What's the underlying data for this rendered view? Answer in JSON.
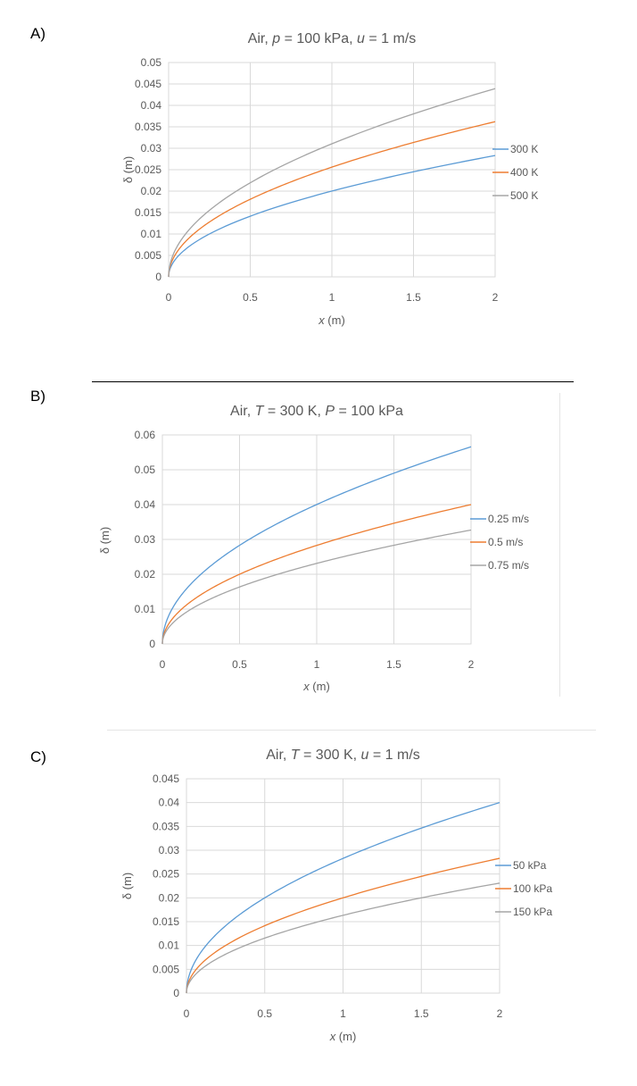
{
  "panels": [
    {
      "label": "A)"
    },
    {
      "label": "B)"
    },
    {
      "label": "C)"
    }
  ],
  "colors": {
    "blue": "#5b9bd5",
    "orange": "#ed7d31",
    "gray": "#a5a5a5",
    "grid": "#d9d9d9"
  },
  "chart_data": [
    {
      "type": "line",
      "title_parts": [
        {
          "t": "Air, ",
          "i": false
        },
        {
          "t": "p",
          "i": true
        },
        {
          "t": " = 100 kPa, ",
          "i": false
        },
        {
          "t": "u",
          "i": true
        },
        {
          "t": " = 1 m/s",
          "i": false
        }
      ],
      "xlabel_parts": [
        {
          "t": "x",
          "i": true
        },
        {
          "t": " (m)",
          "i": false
        }
      ],
      "ylabel": "δ (m)",
      "xlim": [
        0,
        2
      ],
      "ylim": [
        0,
        0.05
      ],
      "xticks": [
        0,
        0.5,
        1,
        1.5,
        2
      ],
      "xtick_labels": [
        "0",
        "0.5",
        "1",
        "1.5",
        "2"
      ],
      "yticks": [
        0,
        0.005,
        0.01,
        0.015,
        0.02,
        0.025,
        0.03,
        0.035,
        0.04,
        0.045,
        0.05
      ],
      "ytick_labels": [
        "0",
        "0.005",
        "0.01",
        "0.015",
        "0.02",
        "0.025",
        "0.03",
        "0.035",
        "0.04",
        "0.045",
        "0.05"
      ],
      "legend_position": "right",
      "series": [
        {
          "name": "300 K",
          "color": "#5b9bd5",
          "x": [
            0,
            0.05,
            0.1,
            0.25,
            0.5,
            0.75,
            1,
            1.25,
            1.5,
            1.75,
            2
          ],
          "y": [
            0,
            0.0045,
            0.0063,
            0.01,
            0.0141,
            0.0173,
            0.02,
            0.0224,
            0.0245,
            0.0265,
            0.0283
          ]
        },
        {
          "name": "400 K",
          "color": "#ed7d31",
          "x": [
            0,
            0.05,
            0.1,
            0.25,
            0.5,
            0.75,
            1,
            1.25,
            1.5,
            1.75,
            2
          ],
          "y": [
            0,
            0.0057,
            0.0081,
            0.0128,
            0.0181,
            0.0222,
            0.0256,
            0.0286,
            0.0314,
            0.0339,
            0.0362
          ]
        },
        {
          "name": "500 K",
          "color": "#a5a5a5",
          "x": [
            0,
            0.05,
            0.1,
            0.25,
            0.5,
            0.75,
            1,
            1.25,
            1.5,
            1.75,
            2
          ],
          "y": [
            0,
            0.007,
            0.0098,
            0.0155,
            0.022,
            0.0269,
            0.031,
            0.0347,
            0.038,
            0.041,
            0.0439
          ]
        }
      ]
    },
    {
      "type": "line",
      "title_parts": [
        {
          "t": "Air, ",
          "i": false
        },
        {
          "t": "T",
          "i": true
        },
        {
          "t": " = 300 K, ",
          "i": false
        },
        {
          "t": "P",
          "i": true
        },
        {
          "t": " = 100 kPa",
          "i": false
        }
      ],
      "xlabel_parts": [
        {
          "t": "x",
          "i": true
        },
        {
          "t": " (m)",
          "i": false
        }
      ],
      "ylabel": "δ (m)",
      "xlim": [
        0,
        2
      ],
      "ylim": [
        0,
        0.06
      ],
      "xticks": [
        0,
        0.5,
        1,
        1.5,
        2
      ],
      "xtick_labels": [
        "0",
        "0.5",
        "1",
        "1.5",
        "2"
      ],
      "yticks": [
        0,
        0.01,
        0.02,
        0.03,
        0.04,
        0.05,
        0.06
      ],
      "ytick_labels": [
        "0",
        "0.01",
        "0.02",
        "0.03",
        "0.04",
        "0.05",
        "0.06"
      ],
      "legend_position": "right",
      "series": [
        {
          "name": "0.25 m/s",
          "color": "#5b9bd5",
          "x": [
            0,
            0.05,
            0.1,
            0.25,
            0.5,
            0.75,
            1,
            1.25,
            1.5,
            1.75,
            2
          ],
          "y": [
            0,
            0.0089,
            0.0126,
            0.02,
            0.0283,
            0.0346,
            0.04,
            0.0447,
            0.049,
            0.0529,
            0.0566
          ]
        },
        {
          "name": "0.5 m/s",
          "color": "#ed7d31",
          "x": [
            0,
            0.05,
            0.1,
            0.25,
            0.5,
            0.75,
            1,
            1.25,
            1.5,
            1.75,
            2
          ],
          "y": [
            0,
            0.0063,
            0.0089,
            0.0141,
            0.02,
            0.0245,
            0.0283,
            0.0316,
            0.0346,
            0.0374,
            0.04
          ]
        },
        {
          "name": "0.75 m/s",
          "color": "#a5a5a5",
          "x": [
            0,
            0.05,
            0.1,
            0.25,
            0.5,
            0.75,
            1,
            1.25,
            1.5,
            1.75,
            2
          ],
          "y": [
            0,
            0.0052,
            0.0073,
            0.0115,
            0.0163,
            0.02,
            0.0231,
            0.0258,
            0.0283,
            0.0306,
            0.0327
          ]
        }
      ]
    },
    {
      "type": "line",
      "title_parts": [
        {
          "t": "Air, ",
          "i": false
        },
        {
          "t": "T",
          "i": true
        },
        {
          "t": " = 300 K, ",
          "i": false
        },
        {
          "t": "u",
          "i": true
        },
        {
          "t": " = 1 m/s",
          "i": false
        }
      ],
      "xlabel_parts": [
        {
          "t": "x",
          "i": true
        },
        {
          "t": " (m)",
          "i": false
        }
      ],
      "ylabel": "δ (m)",
      "xlim": [
        0,
        2
      ],
      "ylim": [
        0,
        0.045
      ],
      "xticks": [
        0,
        0.5,
        1,
        1.5,
        2
      ],
      "xtick_labels": [
        "0",
        "0.5",
        "1",
        "1.5",
        "2"
      ],
      "yticks": [
        0,
        0.005,
        0.01,
        0.015,
        0.02,
        0.025,
        0.03,
        0.035,
        0.04,
        0.045
      ],
      "ytick_labels": [
        "0",
        "0.005",
        "0.01",
        "0.015",
        "0.02",
        "0.025",
        "0.03",
        "0.035",
        "0.04",
        "0.045"
      ],
      "legend_position": "right",
      "series": [
        {
          "name": "50 kPa",
          "color": "#5b9bd5",
          "x": [
            0,
            0.05,
            0.1,
            0.25,
            0.5,
            0.75,
            1,
            1.25,
            1.5,
            1.75,
            2
          ],
          "y": [
            0,
            0.0063,
            0.0089,
            0.0141,
            0.02,
            0.0245,
            0.0283,
            0.0316,
            0.0346,
            0.0374,
            0.04
          ]
        },
        {
          "name": "100 kPa",
          "color": "#ed7d31",
          "x": [
            0,
            0.05,
            0.1,
            0.25,
            0.5,
            0.75,
            1,
            1.25,
            1.5,
            1.75,
            2
          ],
          "y": [
            0,
            0.0045,
            0.0063,
            0.01,
            0.0141,
            0.0173,
            0.02,
            0.0224,
            0.0245,
            0.0265,
            0.0283
          ]
        },
        {
          "name": "150 kPa",
          "color": "#a5a5a5",
          "x": [
            0,
            0.05,
            0.1,
            0.25,
            0.5,
            0.75,
            1,
            1.25,
            1.5,
            1.75,
            2
          ],
          "y": [
            0,
            0.0037,
            0.0052,
            0.0082,
            0.0115,
            0.0141,
            0.0163,
            0.0183,
            0.02,
            0.0216,
            0.0231
          ]
        }
      ]
    }
  ]
}
